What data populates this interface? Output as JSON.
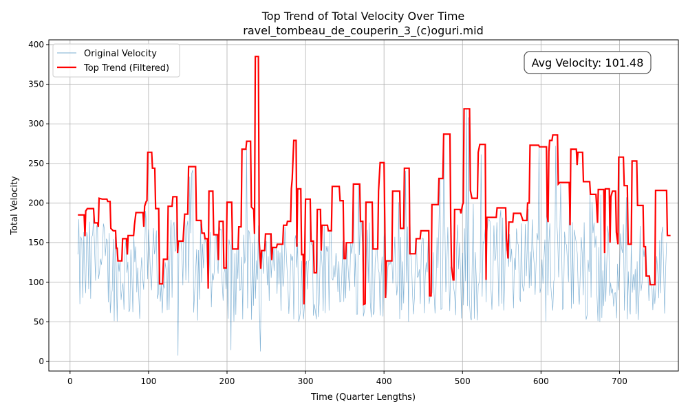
{
  "chart_data": {
    "type": "line",
    "title": "Top Trend of Total Velocity Over Time",
    "subtitle": "ravel_tombeau_de_couperin_3_(c)oguri.mid",
    "xlabel": "Time (Quarter Lengths)",
    "ylabel": "Total Velocity",
    "xlim": [
      -27,
      775
    ],
    "ylim": [
      -12,
      406
    ],
    "xticks": [
      0,
      100,
      200,
      300,
      400,
      500,
      600,
      700
    ],
    "yticks": [
      0,
      50,
      100,
      150,
      200,
      250,
      300,
      350,
      400
    ],
    "grid": true,
    "legend_position": "top-left",
    "annotation": "Avg Velocity: 101.48",
    "colors": {
      "original": "#1f77b4",
      "trend": "#ff0000",
      "grid": "#b0b0b0"
    },
    "series": [
      {
        "name": "Original Velocity",
        "style": "thin-line",
        "x_start": 10,
        "x_end": 760,
        "samples": 600,
        "y_min": 5,
        "y_max": 385,
        "y_typical_range": [
          50,
          180
        ]
      },
      {
        "name": "Top Trend (Filtered)",
        "style": "step-line",
        "points": [
          [
            10,
            185
          ],
          [
            18,
            185
          ],
          [
            19,
            158
          ],
          [
            20,
            190
          ],
          [
            22,
            193
          ],
          [
            30,
            193
          ],
          [
            31,
            175
          ],
          [
            35,
            175
          ],
          [
            36,
            170
          ],
          [
            37,
            206
          ],
          [
            41,
            205
          ],
          [
            47,
            205
          ],
          [
            48,
            202
          ],
          [
            51,
            202
          ],
          [
            52,
            168
          ],
          [
            55,
            165
          ],
          [
            58,
            165
          ],
          [
            59,
            143
          ],
          [
            60,
            143
          ],
          [
            61,
            127
          ],
          [
            66,
            127
          ],
          [
            67,
            155
          ],
          [
            72,
            155
          ],
          [
            73,
            135
          ],
          [
            74,
            159
          ],
          [
            81,
            159
          ],
          [
            82,
            172
          ],
          [
            84,
            188
          ],
          [
            93,
            188
          ],
          [
            94,
            170
          ],
          [
            95,
            196
          ],
          [
            97,
            202
          ],
          [
            98,
            203
          ],
          [
            99,
            264
          ],
          [
            104,
            264
          ],
          [
            105,
            244
          ],
          [
            108,
            244
          ],
          [
            109,
            193
          ],
          [
            113,
            193
          ],
          [
            114,
            98
          ],
          [
            118,
            98
          ],
          [
            119,
            129
          ],
          [
            124,
            129
          ],
          [
            125,
            196
          ],
          [
            130,
            196
          ],
          [
            131,
            208
          ],
          [
            136,
            208
          ],
          [
            137,
            137
          ],
          [
            138,
            152
          ],
          [
            144,
            152
          ],
          [
            145,
            169
          ],
          [
            146,
            186
          ],
          [
            150,
            186
          ],
          [
            151,
            246
          ],
          [
            160,
            246
          ],
          [
            161,
            178
          ],
          [
            167,
            178
          ],
          [
            168,
            162
          ],
          [
            171,
            162
          ],
          [
            172,
            155
          ],
          [
            175,
            155
          ],
          [
            176,
            92
          ],
          [
            177,
            215
          ],
          [
            182,
            215
          ],
          [
            183,
            160
          ],
          [
            188,
            160
          ],
          [
            189,
            128
          ],
          [
            190,
            177
          ],
          [
            195,
            177
          ],
          [
            196,
            118
          ],
          [
            199,
            118
          ],
          [
            200,
            201
          ],
          [
            206,
            201
          ],
          [
            207,
            142
          ],
          [
            214,
            142
          ],
          [
            215,
            170
          ],
          [
            218,
            170
          ],
          [
            219,
            268
          ],
          [
            224,
            268
          ],
          [
            225,
            278
          ],
          [
            230,
            278
          ],
          [
            231,
            195
          ],
          [
            234,
            192
          ],
          [
            235,
            161
          ],
          [
            236,
            385
          ],
          [
            240,
            385
          ],
          [
            241,
            152
          ],
          [
            243,
            117
          ],
          [
            244,
            140
          ],
          [
            248,
            140
          ],
          [
            249,
            161
          ],
          [
            256,
            161
          ],
          [
            257,
            128
          ],
          [
            258,
            144
          ],
          [
            263,
            144
          ],
          [
            264,
            148
          ],
          [
            271,
            148
          ],
          [
            272,
            172
          ],
          [
            276,
            172
          ],
          [
            277,
            177
          ],
          [
            281,
            177
          ],
          [
            282,
            218
          ],
          [
            283,
            230
          ],
          [
            285,
            279
          ],
          [
            288,
            279
          ],
          [
            289,
            145
          ],
          [
            290,
            218
          ],
          [
            294,
            218
          ],
          [
            295,
            135
          ],
          [
            297,
            135
          ],
          [
            298,
            72
          ],
          [
            300,
            205
          ],
          [
            306,
            205
          ],
          [
            307,
            152
          ],
          [
            310,
            152
          ],
          [
            311,
            112
          ],
          [
            314,
            112
          ],
          [
            315,
            192
          ],
          [
            319,
            192
          ],
          [
            320,
            140
          ],
          [
            321,
            172
          ],
          [
            328,
            172
          ],
          [
            329,
            165
          ],
          [
            333,
            165
          ],
          [
            334,
            221
          ],
          [
            343,
            221
          ],
          [
            344,
            203
          ],
          [
            348,
            203
          ],
          [
            349,
            130
          ],
          [
            351,
            130
          ],
          [
            352,
            150
          ],
          [
            360,
            150
          ],
          [
            361,
            224
          ],
          [
            369,
            224
          ],
          [
            370,
            177
          ],
          [
            373,
            177
          ],
          [
            374,
            72
          ],
          [
            376,
            73
          ],
          [
            377,
            201
          ],
          [
            385,
            201
          ],
          [
            386,
            142
          ],
          [
            392,
            142
          ],
          [
            393,
            215
          ],
          [
            395,
            251
          ],
          [
            400,
            251
          ],
          [
            401,
            177
          ],
          [
            402,
            80
          ],
          [
            403,
            127
          ],
          [
            410,
            127
          ],
          [
            411,
            215
          ],
          [
            420,
            215
          ],
          [
            421,
            168
          ],
          [
            425,
            168
          ],
          [
            426,
            244
          ],
          [
            432,
            244
          ],
          [
            433,
            136
          ],
          [
            440,
            136
          ],
          [
            441,
            155
          ],
          [
            446,
            155
          ],
          [
            447,
            165
          ],
          [
            457,
            165
          ],
          [
            458,
            83
          ],
          [
            460,
            83
          ],
          [
            461,
            198
          ],
          [
            469,
            198
          ],
          [
            470,
            231
          ],
          [
            475,
            231
          ],
          [
            476,
            287
          ],
          [
            484,
            287
          ],
          [
            485,
            180
          ],
          [
            486,
            120
          ],
          [
            488,
            103
          ],
          [
            489,
            103
          ],
          [
            490,
            192
          ],
          [
            497,
            192
          ],
          [
            498,
            187
          ],
          [
            500,
            198
          ],
          [
            501,
            200
          ],
          [
            502,
            319
          ],
          [
            509,
            319
          ],
          [
            510,
            216
          ],
          [
            512,
            206
          ],
          [
            519,
            206
          ],
          [
            520,
            264
          ],
          [
            522,
            274
          ],
          [
            529,
            274
          ],
          [
            530,
            103
          ],
          [
            531,
            182
          ],
          [
            543,
            182
          ],
          [
            544,
            194
          ],
          [
            555,
            194
          ],
          [
            556,
            155
          ],
          [
            558,
            130
          ],
          [
            559,
            176
          ],
          [
            564,
            176
          ],
          [
            565,
            187
          ],
          [
            574,
            187
          ],
          [
            575,
            184
          ],
          [
            577,
            178
          ],
          [
            582,
            178
          ],
          [
            583,
            200
          ],
          [
            585,
            200
          ],
          [
            586,
            273
          ],
          [
            597,
            273
          ],
          [
            598,
            271
          ],
          [
            607,
            271
          ],
          [
            608,
            183
          ],
          [
            609,
            176
          ],
          [
            610,
            265
          ],
          [
            611,
            279
          ],
          [
            614,
            279
          ],
          [
            615,
            286
          ],
          [
            621,
            286
          ],
          [
            622,
            224
          ],
          [
            624,
            226
          ],
          [
            636,
            226
          ],
          [
            637,
            172
          ],
          [
            638,
            268
          ],
          [
            645,
            268
          ],
          [
            646,
            248
          ],
          [
            647,
            264
          ],
          [
            653,
            264
          ],
          [
            654,
            227
          ],
          [
            662,
            227
          ],
          [
            663,
            211
          ],
          [
            670,
            211
          ],
          [
            671,
            195
          ],
          [
            672,
            175
          ],
          [
            673,
            217
          ],
          [
            680,
            217
          ],
          [
            681,
            137
          ],
          [
            682,
            218
          ],
          [
            687,
            218
          ],
          [
            688,
            150
          ],
          [
            689,
            208
          ],
          [
            691,
            215
          ],
          [
            695,
            215
          ],
          [
            696,
            163
          ],
          [
            698,
            148
          ],
          [
            699,
            258
          ],
          [
            705,
            258
          ],
          [
            706,
            222
          ],
          [
            710,
            222
          ],
          [
            711,
            148
          ],
          [
            715,
            148
          ],
          [
            716,
            253
          ],
          [
            722,
            253
          ],
          [
            723,
            197
          ],
          [
            730,
            197
          ],
          [
            731,
            145
          ],
          [
            733,
            145
          ],
          [
            734,
            108
          ],
          [
            738,
            108
          ],
          [
            739,
            97
          ],
          [
            745,
            97
          ],
          [
            746,
            216
          ],
          [
            760,
            216
          ],
          [
            761,
            159
          ],
          [
            765,
            159
          ]
        ]
      }
    ]
  }
}
